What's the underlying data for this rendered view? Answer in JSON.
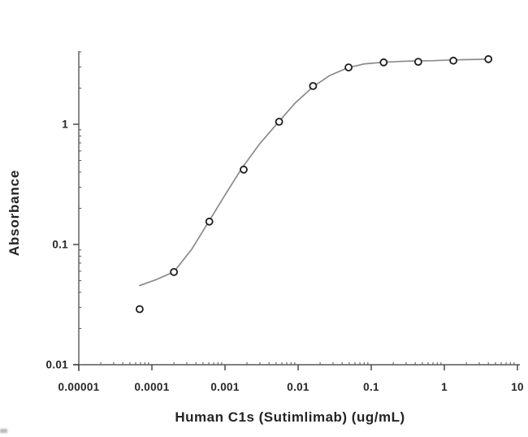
{
  "figure": {
    "background": "#ffffff",
    "axis_color": "#565656",
    "tick_color": "#3f3f3f",
    "text_color": "#242424",
    "curve_color": "#8a8a8a",
    "marker_stroke": "#1c1c1c",
    "marker_fill": "#ffffff"
  },
  "chart_data": {
    "type": "scatter",
    "title": "",
    "xlabel": "Human C1s (Sutimlimab) (ug/mL)",
    "ylabel": "Absorbance",
    "xscale": "log",
    "yscale": "log",
    "xlim": [
      1e-05,
      10
    ],
    "ylim": [
      0.01,
      4
    ],
    "grid": false,
    "legend": "none",
    "x_ticks": [
      {
        "value": 1e-05,
        "label": "0.00001"
      },
      {
        "value": 0.0001,
        "label": "0.0001"
      },
      {
        "value": 0.001,
        "label": "0.001"
      },
      {
        "value": 0.01,
        "label": "0.01"
      },
      {
        "value": 0.1,
        "label": "0.1"
      },
      {
        "value": 1,
        "label": "1"
      },
      {
        "value": 10,
        "label": "10"
      }
    ],
    "y_ticks": [
      {
        "value": 1,
        "label": "1"
      },
      {
        "value": 0.1,
        "label": "0.1"
      },
      {
        "value": 0.01,
        "label": "0.01"
      }
    ],
    "series": [
      {
        "name": "measured-points",
        "style": "open-circle",
        "points": [
          {
            "x": 6.8e-05,
            "y": 0.029
          },
          {
            "x": 0.0002,
            "y": 0.059
          },
          {
            "x": 0.00061,
            "y": 0.155
          },
          {
            "x": 0.0018,
            "y": 0.42
          },
          {
            "x": 0.0055,
            "y": 1.05
          },
          {
            "x": 0.016,
            "y": 2.08
          },
          {
            "x": 0.049,
            "y": 2.97
          },
          {
            "x": 0.148,
            "y": 3.27
          },
          {
            "x": 0.44,
            "y": 3.31
          },
          {
            "x": 1.33,
            "y": 3.38
          },
          {
            "x": 4.0,
            "y": 3.48
          }
        ]
      },
      {
        "name": "fit-curve",
        "style": "line",
        "points": [
          {
            "x": 6.8e-05,
            "y": 0.0455
          },
          {
            "x": 0.000117,
            "y": 0.0513
          },
          {
            "x": 0.0002,
            "y": 0.0592
          },
          {
            "x": 0.00035,
            "y": 0.0912
          },
          {
            "x": 0.0006,
            "y": 0.155
          },
          {
            "x": 0.001,
            "y": 0.258
          },
          {
            "x": 0.00171,
            "y": 0.434
          },
          {
            "x": 0.003,
            "y": 0.691
          },
          {
            "x": 0.0053,
            "y": 1.033
          },
          {
            "x": 0.0091,
            "y": 1.5
          },
          {
            "x": 0.0158,
            "y": 2.04
          },
          {
            "x": 0.0269,
            "y": 2.54
          },
          {
            "x": 0.047,
            "y": 2.94
          },
          {
            "x": 0.081,
            "y": 3.18
          },
          {
            "x": 0.141,
            "y": 3.27
          },
          {
            "x": 0.24,
            "y": 3.33
          },
          {
            "x": 0.42,
            "y": 3.37
          },
          {
            "x": 0.71,
            "y": 3.38
          },
          {
            "x": 1.25,
            "y": 3.43
          },
          {
            "x": 2.13,
            "y": 3.45
          },
          {
            "x": 4.0,
            "y": 3.48
          }
        ]
      }
    ]
  }
}
